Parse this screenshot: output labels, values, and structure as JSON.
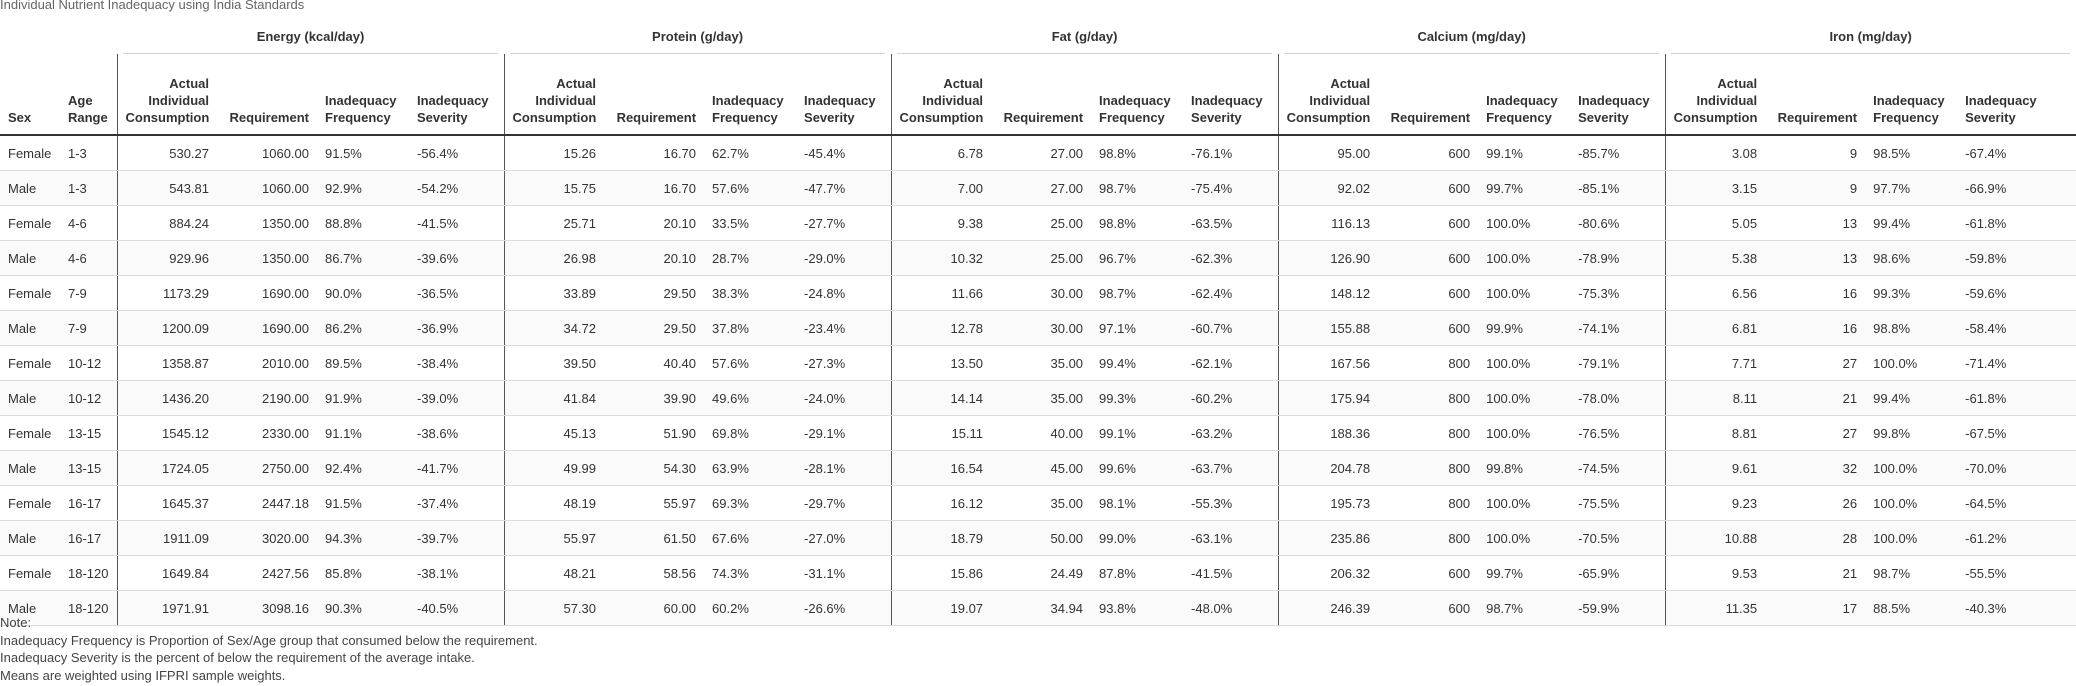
{
  "caption": "Individual Nutrient Inadequacy using India Standards",
  "groups": [
    "Energy (kcal/day)",
    "Protein (g/day)",
    "Fat (g/day)",
    "Calcium (mg/day)",
    "Iron (mg/day)"
  ],
  "columns": {
    "sex": "Sex",
    "age": "Age Range",
    "actual": "Actual Individual Consumption",
    "requirement": "Requirement",
    "frequency": "Inadequacy Frequency",
    "severity": "Inadequacy Severity"
  },
  "rows": [
    {
      "sex": "Female",
      "age": "1-3",
      "values": [
        [
          "530.27",
          "1060.00",
          "91.5%",
          "-56.4%"
        ],
        [
          "15.26",
          "16.70",
          "62.7%",
          "-45.4%"
        ],
        [
          "6.78",
          "27.00",
          "98.8%",
          "-76.1%"
        ],
        [
          "95.00",
          "600",
          "99.1%",
          "-85.7%"
        ],
        [
          "3.08",
          "9",
          "98.5%",
          "-67.4%"
        ]
      ]
    },
    {
      "sex": "Male",
      "age": "1-3",
      "values": [
        [
          "543.81",
          "1060.00",
          "92.9%",
          "-54.2%"
        ],
        [
          "15.75",
          "16.70",
          "57.6%",
          "-47.7%"
        ],
        [
          "7.00",
          "27.00",
          "98.7%",
          "-75.4%"
        ],
        [
          "92.02",
          "600",
          "99.7%",
          "-85.1%"
        ],
        [
          "3.15",
          "9",
          "97.7%",
          "-66.9%"
        ]
      ]
    },
    {
      "sex": "Female",
      "age": "4-6",
      "values": [
        [
          "884.24",
          "1350.00",
          "88.8%",
          "-41.5%"
        ],
        [
          "25.71",
          "20.10",
          "33.5%",
          "-27.7%"
        ],
        [
          "9.38",
          "25.00",
          "98.8%",
          "-63.5%"
        ],
        [
          "116.13",
          "600",
          "100.0%",
          "-80.6%"
        ],
        [
          "5.05",
          "13",
          "99.4%",
          "-61.8%"
        ]
      ]
    },
    {
      "sex": "Male",
      "age": "4-6",
      "values": [
        [
          "929.96",
          "1350.00",
          "86.7%",
          "-39.6%"
        ],
        [
          "26.98",
          "20.10",
          "28.7%",
          "-29.0%"
        ],
        [
          "10.32",
          "25.00",
          "96.7%",
          "-62.3%"
        ],
        [
          "126.90",
          "600",
          "100.0%",
          "-78.9%"
        ],
        [
          "5.38",
          "13",
          "98.6%",
          "-59.8%"
        ]
      ]
    },
    {
      "sex": "Female",
      "age": "7-9",
      "values": [
        [
          "1173.29",
          "1690.00",
          "90.0%",
          "-36.5%"
        ],
        [
          "33.89",
          "29.50",
          "38.3%",
          "-24.8%"
        ],
        [
          "11.66",
          "30.00",
          "98.7%",
          "-62.4%"
        ],
        [
          "148.12",
          "600",
          "100.0%",
          "-75.3%"
        ],
        [
          "6.56",
          "16",
          "99.3%",
          "-59.6%"
        ]
      ]
    },
    {
      "sex": "Male",
      "age": "7-9",
      "values": [
        [
          "1200.09",
          "1690.00",
          "86.2%",
          "-36.9%"
        ],
        [
          "34.72",
          "29.50",
          "37.8%",
          "-23.4%"
        ],
        [
          "12.78",
          "30.00",
          "97.1%",
          "-60.7%"
        ],
        [
          "155.88",
          "600",
          "99.9%",
          "-74.1%"
        ],
        [
          "6.81",
          "16",
          "98.8%",
          "-58.4%"
        ]
      ]
    },
    {
      "sex": "Female",
      "age": "10-12",
      "values": [
        [
          "1358.87",
          "2010.00",
          "89.5%",
          "-38.4%"
        ],
        [
          "39.50",
          "40.40",
          "57.6%",
          "-27.3%"
        ],
        [
          "13.50",
          "35.00",
          "99.4%",
          "-62.1%"
        ],
        [
          "167.56",
          "800",
          "100.0%",
          "-79.1%"
        ],
        [
          "7.71",
          "27",
          "100.0%",
          "-71.4%"
        ]
      ]
    },
    {
      "sex": "Male",
      "age": "10-12",
      "values": [
        [
          "1436.20",
          "2190.00",
          "91.9%",
          "-39.0%"
        ],
        [
          "41.84",
          "39.90",
          "49.6%",
          "-24.0%"
        ],
        [
          "14.14",
          "35.00",
          "99.3%",
          "-60.2%"
        ],
        [
          "175.94",
          "800",
          "100.0%",
          "-78.0%"
        ],
        [
          "8.11",
          "21",
          "99.4%",
          "-61.8%"
        ]
      ]
    },
    {
      "sex": "Female",
      "age": "13-15",
      "values": [
        [
          "1545.12",
          "2330.00",
          "91.1%",
          "-38.6%"
        ],
        [
          "45.13",
          "51.90",
          "69.8%",
          "-29.1%"
        ],
        [
          "15.11",
          "40.00",
          "99.1%",
          "-63.2%"
        ],
        [
          "188.36",
          "800",
          "100.0%",
          "-76.5%"
        ],
        [
          "8.81",
          "27",
          "99.8%",
          "-67.5%"
        ]
      ]
    },
    {
      "sex": "Male",
      "age": "13-15",
      "values": [
        [
          "1724.05",
          "2750.00",
          "92.4%",
          "-41.7%"
        ],
        [
          "49.99",
          "54.30",
          "63.9%",
          "-28.1%"
        ],
        [
          "16.54",
          "45.00",
          "99.6%",
          "-63.7%"
        ],
        [
          "204.78",
          "800",
          "99.8%",
          "-74.5%"
        ],
        [
          "9.61",
          "32",
          "100.0%",
          "-70.0%"
        ]
      ]
    },
    {
      "sex": "Female",
      "age": "16-17",
      "values": [
        [
          "1645.37",
          "2447.18",
          "91.5%",
          "-37.4%"
        ],
        [
          "48.19",
          "55.97",
          "69.3%",
          "-29.7%"
        ],
        [
          "16.12",
          "35.00",
          "98.1%",
          "-55.3%"
        ],
        [
          "195.73",
          "800",
          "100.0%",
          "-75.5%"
        ],
        [
          "9.23",
          "26",
          "100.0%",
          "-64.5%"
        ]
      ]
    },
    {
      "sex": "Male",
      "age": "16-17",
      "values": [
        [
          "1911.09",
          "3020.00",
          "94.3%",
          "-39.7%"
        ],
        [
          "55.97",
          "61.50",
          "67.6%",
          "-27.0%"
        ],
        [
          "18.79",
          "50.00",
          "99.0%",
          "-63.1%"
        ],
        [
          "235.86",
          "800",
          "100.0%",
          "-70.5%"
        ],
        [
          "10.88",
          "28",
          "100.0%",
          "-61.2%"
        ]
      ]
    },
    {
      "sex": "Female",
      "age": "18-120",
      "values": [
        [
          "1649.84",
          "2427.56",
          "85.8%",
          "-38.1%"
        ],
        [
          "48.21",
          "58.56",
          "74.3%",
          "-31.1%"
        ],
        [
          "15.86",
          "24.49",
          "87.8%",
          "-41.5%"
        ],
        [
          "206.32",
          "600",
          "99.7%",
          "-65.9%"
        ],
        [
          "9.53",
          "21",
          "98.7%",
          "-55.5%"
        ]
      ]
    },
    {
      "sex": "Male",
      "age": "18-120",
      "values": [
        [
          "1971.91",
          "3098.16",
          "90.3%",
          "-40.5%"
        ],
        [
          "57.30",
          "60.00",
          "60.2%",
          "-26.6%"
        ],
        [
          "19.07",
          "34.94",
          "93.8%",
          "-48.0%"
        ],
        [
          "246.39",
          "600",
          "98.7%",
          "-59.9%"
        ],
        [
          "11.35",
          "17",
          "88.5%",
          "-40.3%"
        ]
      ]
    }
  ],
  "notes": [
    "Note:",
    "Inadequacy Frequency is Proportion of Sex/Age group that consumed below the requirement.",
    "Inadequacy Severity is the percent of below the requirement of the average intake.",
    "Means are weighted using IFPRI sample weights."
  ]
}
